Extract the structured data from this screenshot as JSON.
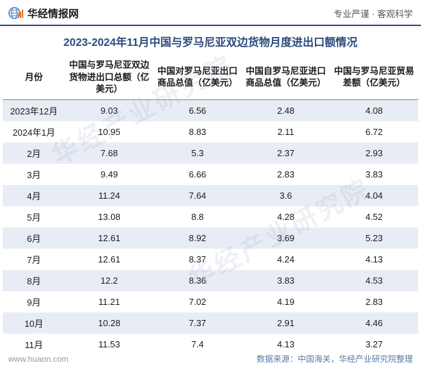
{
  "header": {
    "brand": "华经情报网",
    "tagline": "专业严谨 · 客观科学"
  },
  "title": "2023-2024年11月中国与罗马尼亚双边货物月度进出口额情况",
  "table": {
    "columns": [
      "月份",
      "中国与罗马尼亚双边货物进出口总额（亿美元）",
      "中国对罗马尼亚出口商品总值（亿美元）",
      "中国自罗马尼亚进口商品总值（亿美元）",
      "中国与罗马尼亚贸易差额（亿美元）"
    ],
    "rows": [
      [
        "2023年12月",
        "9.03",
        "6.56",
        "2.48",
        "4.08"
      ],
      [
        "2024年1月",
        "10.95",
        "8.83",
        "2.11",
        "6.72"
      ],
      [
        "2月",
        "7.68",
        "5.3",
        "2.37",
        "2.93"
      ],
      [
        "3月",
        "9.49",
        "6.66",
        "2.83",
        "3.83"
      ],
      [
        "4月",
        "11.24",
        "7.64",
        "3.6",
        "4.04"
      ],
      [
        "5月",
        "13.08",
        "8.8",
        "4.28",
        "4.52"
      ],
      [
        "6月",
        "12.61",
        "8.92",
        "3.69",
        "5.23"
      ],
      [
        "7月",
        "12.61",
        "8.37",
        "4.24",
        "4.13"
      ],
      [
        "8月",
        "12.2",
        "8.36",
        "3.83",
        "4.53"
      ],
      [
        "9月",
        "11.21",
        "7.02",
        "4.19",
        "2.83"
      ],
      [
        "10月",
        "10.28",
        "7.37",
        "2.91",
        "4.46"
      ],
      [
        "11月",
        "11.53",
        "7.4",
        "4.13",
        "3.27"
      ]
    ]
  },
  "footer": {
    "url": "www.huaon.com",
    "source": "数据来源：中国海关，华经产业研究院整理"
  },
  "watermark": "华经产业研究院",
  "styles": {
    "header_border_color": "#2b4a7a",
    "title_color": "#2b4a7a",
    "row_odd_bg": "#e8edf5",
    "row_even_bg": "#ffffff",
    "text_color": "#1a1a1a",
    "footer_source_color": "#5a7aa8",
    "watermark_color": "rgba(120,140,170,0.13)",
    "logo_globe_color": "#3a7abd",
    "logo_bar_color": "#e67a2e"
  }
}
